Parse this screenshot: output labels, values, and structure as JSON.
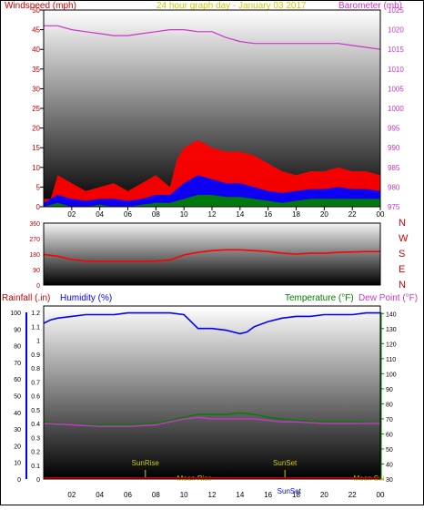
{
  "colors": {
    "wind": "#ff0000",
    "gust": "#ff0000",
    "avg_wind": "#0000ff",
    "low_wind": "#008000",
    "barometer": "#cc33cc",
    "direction": "#ff0000",
    "humidity": "#0000ff",
    "temperature": "#008000",
    "dew_point": "#cc33cc",
    "rainfall": "#cc0000",
    "title": "#cccc00",
    "sun_moon": "#cccc00",
    "axis_text": "#000000"
  },
  "chart_data": [
    {
      "type": "line",
      "title": "24 hour graph day - January 03 2017",
      "ylabel": "Windspeed (mph)",
      "y2label": "Barometer (mb)",
      "xlim": [
        0,
        24
      ],
      "ylim": [
        0,
        50
      ],
      "y2lim": [
        975,
        1025
      ],
      "x_ticks": [
        "02",
        "04",
        "06",
        "08",
        "10",
        "12",
        "14",
        "16",
        "18",
        "20",
        "22",
        "00"
      ],
      "y_ticks": [
        0,
        5,
        10,
        15,
        20,
        25,
        30,
        35,
        40,
        45,
        50
      ],
      "y2_ticks": [
        975,
        980,
        985,
        990,
        995,
        1000,
        1005,
        1010,
        1015,
        1020,
        1025
      ],
      "grid": false,
      "series": [
        {
          "name": "Windspeed (mph)",
          "role": "gust",
          "axis": "left",
          "x": [
            0,
            0.5,
            1,
            1.5,
            2,
            3,
            4,
            5,
            6,
            7,
            8,
            9,
            9.5,
            10,
            10.5,
            11,
            11.5,
            12,
            13,
            14,
            15,
            16,
            17,
            18,
            19,
            20,
            21,
            22,
            23,
            24
          ],
          "y": [
            2,
            2,
            8,
            7,
            6,
            4,
            5,
            6,
            4,
            6,
            8,
            5,
            12,
            15,
            16,
            17,
            16,
            15,
            14,
            14,
            13,
            11,
            9,
            8,
            9,
            9,
            10,
            9,
            9,
            8
          ]
        },
        {
          "axis": "left",
          "role": "avg",
          "x": [
            0,
            1,
            2,
            3,
            4,
            5,
            6,
            7,
            8,
            9,
            10,
            11,
            12,
            13,
            14,
            15,
            16,
            17,
            18,
            19,
            20,
            21,
            22,
            23,
            24
          ],
          "y": [
            1,
            3,
            2,
            1.5,
            2,
            2,
            1.5,
            2,
            3,
            3,
            6,
            8,
            7,
            6,
            6,
            5,
            4,
            3.5,
            4,
            4.5,
            4.5,
            5,
            4.5,
            4.5,
            4
          ]
        },
        {
          "axis": "left",
          "role": "low",
          "x": [
            0,
            1,
            2,
            3,
            4,
            5,
            6,
            7,
            8,
            9,
            10,
            11,
            12,
            13,
            14,
            15,
            16,
            17,
            18,
            19,
            20,
            21,
            22,
            23,
            24
          ],
          "y": [
            0,
            1,
            0,
            0,
            0.5,
            0,
            0,
            0.5,
            1,
            1,
            2,
            3,
            3,
            2.5,
            2.5,
            2,
            1.5,
            1,
            1.5,
            2,
            2,
            2,
            2,
            2,
            2
          ]
        },
        {
          "name": "Barometer (mb)",
          "axis": "right",
          "x": [
            0,
            1,
            2,
            3,
            4,
            5,
            6,
            7,
            8,
            9,
            10,
            11,
            12,
            13,
            14,
            15,
            16,
            17,
            18,
            19,
            20,
            21,
            22,
            23,
            24
          ],
          "y": [
            1021,
            1021,
            1020,
            1019.5,
            1019,
            1018.5,
            1018.5,
            1019,
            1019.5,
            1020,
            1020,
            1019.5,
            1019.5,
            1018,
            1017,
            1016.5,
            1016.5,
            1016.5,
            1016.5,
            1016.5,
            1016.5,
            1016.5,
            1016,
            1015.5,
            1015
          ]
        }
      ]
    },
    {
      "type": "line",
      "xlim": [
        0,
        24
      ],
      "ylim": [
        0,
        360
      ],
      "y_ticks": [
        0,
        90,
        180,
        270,
        360
      ],
      "direction_labels": [
        "N",
        "W",
        "S",
        "E",
        "N"
      ],
      "series": [
        {
          "axis": "left",
          "x": [
            0,
            1,
            2,
            3,
            4,
            5,
            6,
            7,
            8,
            9,
            10,
            11,
            12,
            13,
            14,
            15,
            16,
            17,
            18,
            19,
            20,
            21,
            22,
            23,
            24
          ],
          "y": [
            178,
            168,
            148,
            140,
            138,
            138,
            138,
            138,
            140,
            145,
            175,
            190,
            200,
            205,
            205,
            200,
            195,
            185,
            180,
            185,
            185,
            190,
            192,
            195,
            195
          ]
        }
      ]
    },
    {
      "type": "line",
      "ylabel": "Rainfall (.in)",
      "y2label": "Temperature (°F)",
      "labels_extra": [
        "Humidity (%)",
        "Dew Point (°F)"
      ],
      "xlim": [
        0,
        24
      ],
      "humidity_ticks": [
        0,
        10,
        20,
        30,
        40,
        50,
        60,
        70,
        80,
        90,
        100
      ],
      "rain_ticks": [
        0,
        0.1,
        0.2,
        0.3,
        0.4,
        0.5,
        0.6,
        0.7,
        0.8,
        0.9,
        1,
        1.1,
        1.2
      ],
      "temp_ticks": [
        30,
        40,
        50,
        60,
        70,
        80,
        90,
        100,
        110,
        120,
        130,
        140
      ],
      "sun_moon": [
        {
          "label": "SunRise",
          "x": 7.25
        },
        {
          "label": "SunSet",
          "x": 17.2
        },
        {
          "label": "Moon Rise",
          "x": 10.75
        },
        {
          "label": "SunSet",
          "x": 17.5
        },
        {
          "label": "Moon Set",
          "x": 23.2
        }
      ],
      "series": [
        {
          "name": "Humidity (%)",
          "axis": "humidity",
          "x": [
            0,
            0.5,
            1,
            2,
            3,
            4,
            5,
            6,
            7,
            8,
            9,
            10,
            10.5,
            11,
            12,
            13,
            14,
            14.5,
            15,
            16,
            17,
            18,
            19,
            20,
            21,
            22,
            23,
            24
          ],
          "y": [
            90,
            92,
            93,
            94,
            95,
            95,
            95,
            96,
            96,
            96,
            96,
            95,
            91,
            87,
            87,
            86,
            84,
            85,
            88,
            91,
            93,
            94,
            94,
            95,
            95,
            95,
            96,
            96
          ]
        },
        {
          "name": "Temperature (°F)",
          "axis": "temp",
          "x": [
            0,
            2,
            4,
            6,
            8,
            10,
            11,
            12,
            13,
            14,
            15,
            16,
            17,
            18,
            20,
            22,
            24
          ],
          "y": [
            68,
            66,
            66,
            66,
            67,
            71,
            73,
            73,
            73,
            74,
            73,
            71,
            70,
            69,
            68,
            68,
            67
          ]
        },
        {
          "name": "Dew Point (°F)",
          "axis": "temp",
          "x": [
            0,
            2,
            4,
            6,
            8,
            10,
            11,
            12,
            13,
            14,
            15,
            16,
            17,
            18,
            20,
            22,
            24
          ],
          "y": [
            67,
            66,
            65,
            65,
            66,
            70,
            71,
            70,
            70,
            70,
            70,
            69,
            68,
            68,
            67,
            67,
            67
          ]
        }
      ]
    }
  ]
}
